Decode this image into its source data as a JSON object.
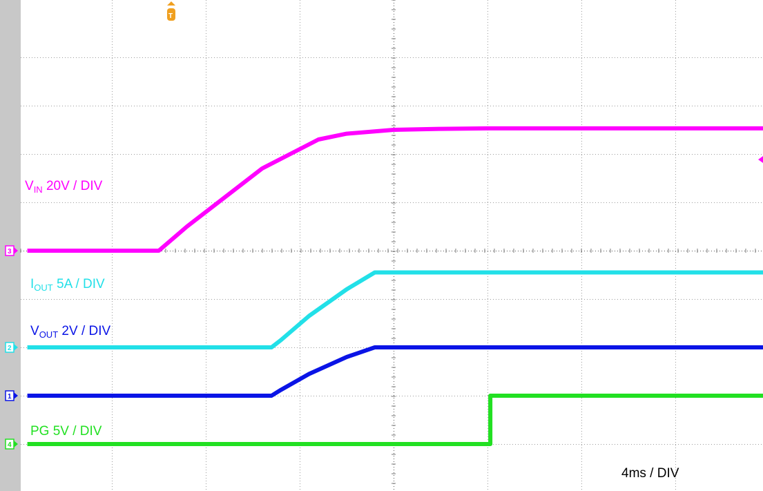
{
  "chart_data": {
    "type": "line",
    "title": "",
    "xlabel": "",
    "ylabel": "",
    "grid": true,
    "divisions": {
      "x": 10,
      "y": 8
    },
    "x_range_div": [
      -3.9,
      6.1
    ],
    "timebase": "4ms / DIV",
    "trigger_marker": "T",
    "series": [
      {
        "channel": "3",
        "color": "#ff00ff",
        "label_main": "V",
        "label_sub": "IN",
        "label_rest": " 20V / DIV",
        "offset_div": 0.0,
        "x_div": [
          -3.9,
          -2.5,
          -2.2,
          -1.8,
          -1.4,
          -1.0,
          -0.8,
          -0.5,
          0.0,
          0.5,
          1.0,
          6.1
        ],
        "y_div": [
          0,
          0,
          0.5,
          1.1,
          1.7,
          2.1,
          2.3,
          2.42,
          2.5,
          2.52,
          2.53,
          2.53
        ]
      },
      {
        "channel": "2",
        "color": "#22e0e8",
        "label_main": "I",
        "label_sub": "OUT",
        "label_rest": " 5A / DIV",
        "offset_div": 0.0,
        "x_div": [
          -3.9,
          -1.3,
          -1.2,
          -0.9,
          -0.5,
          -0.2,
          0.0,
          6.1
        ],
        "y_div": [
          -2.0,
          -2.0,
          -1.85,
          -1.35,
          -0.8,
          -0.45,
          -0.45,
          -0.45
        ]
      },
      {
        "channel": "1",
        "color": "#0a14e6",
        "label_main": "V",
        "label_sub": "OUT",
        "label_rest": " 2V / DIV",
        "offset_div": 0.0,
        "x_div": [
          -3.9,
          -1.3,
          -1.2,
          -0.9,
          -0.5,
          -0.2,
          0.0,
          6.1
        ],
        "y_div": [
          -3.0,
          -3.0,
          -2.88,
          -2.55,
          -2.2,
          -2.0,
          -2.0,
          -2.0
        ]
      },
      {
        "channel": "4",
        "color": "#22e022",
        "label_main": "PG 5V / DIV",
        "label_sub": "",
        "label_rest": "",
        "offset_div": 0.0,
        "x_div": [
          -3.9,
          1.03,
          1.03,
          6.1
        ],
        "y_div": [
          -4.0,
          -4.0,
          -3.0,
          -3.0
        ]
      }
    ]
  }
}
